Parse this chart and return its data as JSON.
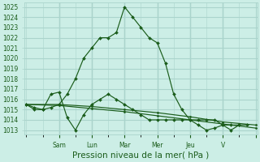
{
  "xlabel": "Pression niveau de la mer( hPa )",
  "bg_color": "#cceee6",
  "grid_color": "#aad4cc",
  "line_color": "#1a5c1a",
  "yticks": [
    1013,
    1014,
    1015,
    1016,
    1017,
    1018,
    1019,
    1020,
    1021,
    1022,
    1023,
    1024,
    1025
  ],
  "ylim": [
    1012.6,
    1025.4
  ],
  "xlim": [
    -0.1,
    14.1
  ],
  "xtick_positions": [
    2,
    4,
    6,
    8,
    10,
    12,
    14
  ],
  "xtick_labels": [
    "Sam",
    "Lun",
    "Mar",
    "Mer",
    "Jeu",
    "V",
    ""
  ],
  "series1_x": [
    0.0,
    0.5,
    1.0,
    1.5,
    2.0,
    2.5,
    3.0,
    3.5,
    4.0,
    4.5,
    5.0,
    5.5,
    6.0,
    6.5,
    7.0,
    7.5,
    8.0,
    8.5,
    9.0,
    9.5,
    10.0,
    10.5,
    11.0,
    11.5,
    12.0,
    12.5,
    13.0,
    13.5
  ],
  "series1_y": [
    1015.5,
    1015.2,
    1015.0,
    1015.2,
    1015.5,
    1016.5,
    1018.0,
    1020.0,
    1021.0,
    1022.0,
    1022.0,
    1022.5,
    1025.0,
    1024.0,
    1023.0,
    1022.0,
    1021.5,
    1019.5,
    1016.5,
    1015.0,
    1014.0,
    1014.0,
    1014.0,
    1014.0,
    1013.5,
    1013.0,
    1013.5,
    1013.5
  ],
  "series2_x": [
    0.0,
    0.5,
    1.0,
    1.5,
    2.0,
    2.5,
    3.0,
    3.5,
    4.0,
    4.5,
    5.0,
    5.5,
    6.0,
    6.5,
    7.0,
    7.5,
    8.0,
    8.5,
    9.0,
    9.5,
    10.0,
    10.5,
    11.0,
    11.5,
    12.0,
    12.5,
    13.0
  ],
  "series2_y": [
    1015.5,
    1015.0,
    1015.0,
    1016.5,
    1016.7,
    1014.2,
    1013.0,
    1014.5,
    1015.5,
    1016.0,
    1016.5,
    1016.0,
    1015.5,
    1015.0,
    1014.5,
    1014.0,
    1014.0,
    1014.0,
    1014.0,
    1014.0,
    1014.0,
    1013.5,
    1013.0,
    1013.2,
    1013.5,
    1013.5,
    1013.5
  ],
  "series3_x": [
    0.0,
    2.0,
    4.0,
    6.0,
    8.0,
    10.0,
    12.0,
    14.0
  ],
  "series3_y": [
    1015.5,
    1015.5,
    1015.3,
    1015.0,
    1014.7,
    1014.3,
    1013.8,
    1013.5
  ],
  "series4_x": [
    0.0,
    2.0,
    4.0,
    6.0,
    8.0,
    10.0,
    12.0,
    14.0
  ],
  "series4_y": [
    1015.5,
    1015.4,
    1015.1,
    1014.8,
    1014.4,
    1014.0,
    1013.6,
    1013.2
  ],
  "tick_fontsize": 5.5,
  "xlabel_fontsize": 7.5
}
